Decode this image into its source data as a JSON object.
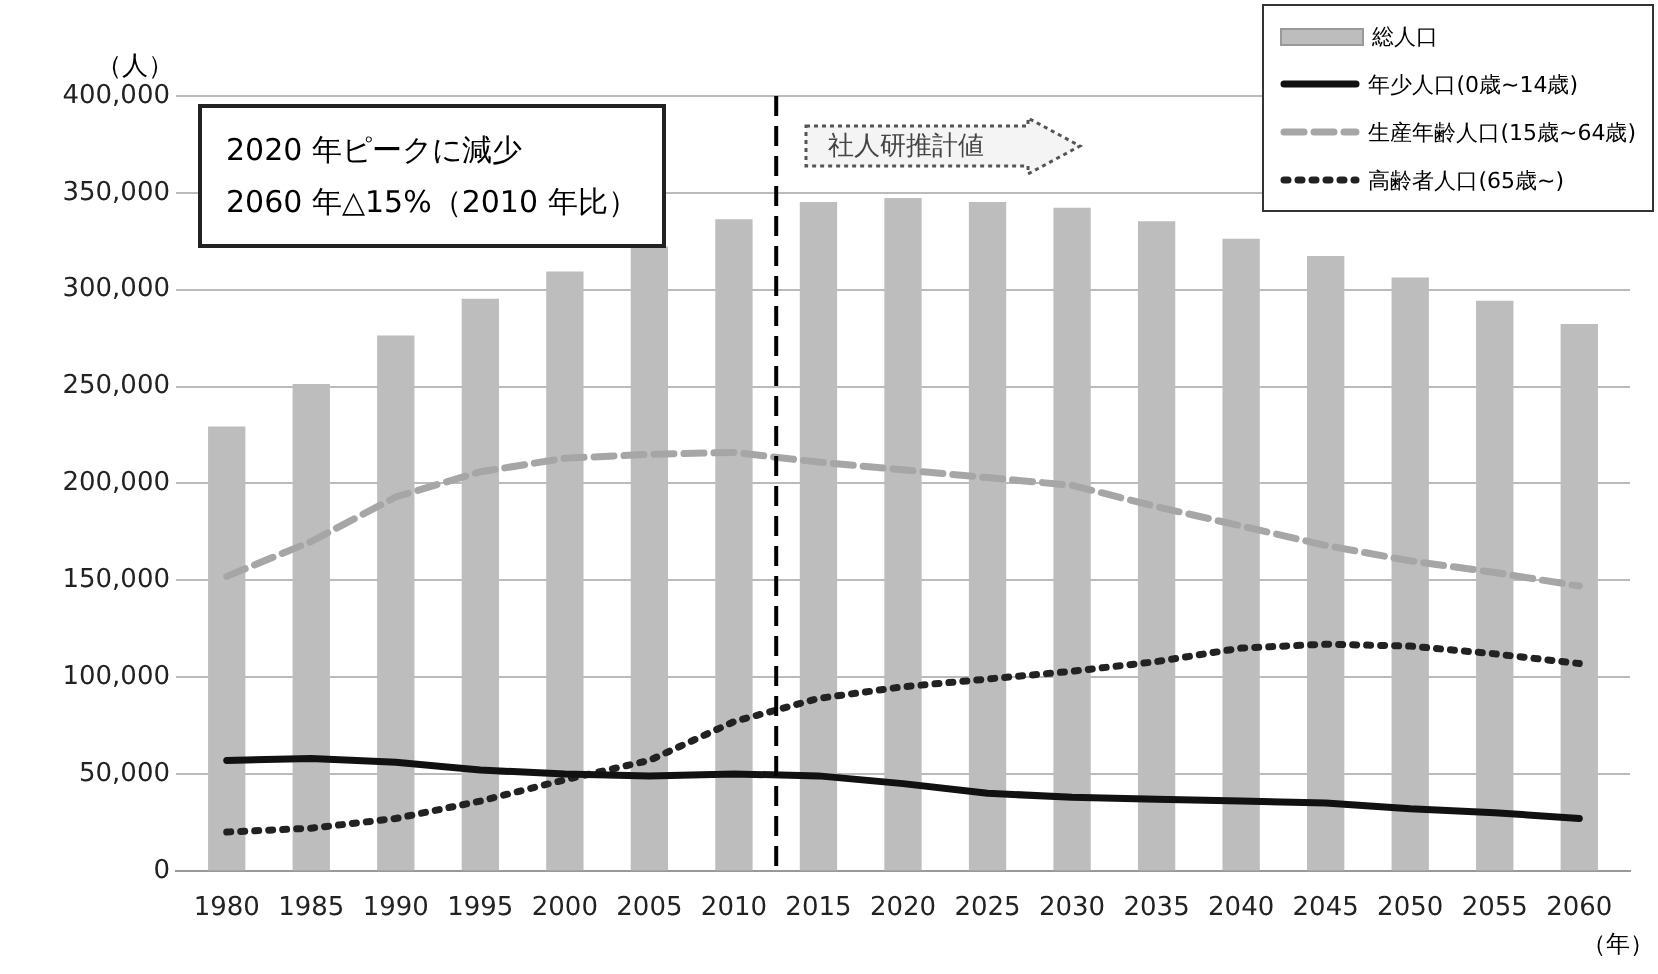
{
  "chart_data": {
    "type": "bar",
    "ylabel": "（人）",
    "xlabel": "（年）",
    "x": [
      1980,
      1985,
      1990,
      1995,
      2000,
      2005,
      2010,
      2015,
      2020,
      2025,
      2030,
      2035,
      2040,
      2045,
      2050,
      2055,
      2060
    ],
    "xlim": [
      1977,
      2063
    ],
    "xticks": [
      1980,
      1985,
      1990,
      1995,
      2000,
      2005,
      2010,
      2015,
      2020,
      2025,
      2030,
      2035,
      2040,
      2045,
      2050,
      2055,
      2060
    ],
    "ylim": [
      0,
      400000
    ],
    "yticks": [
      {
        "value": 0,
        "label": "0"
      },
      {
        "value": 50000,
        "label": "50,000"
      },
      {
        "value": 100000,
        "label": "100,000"
      },
      {
        "value": 150000,
        "label": "150,000"
      },
      {
        "value": 200000,
        "label": "200,000"
      },
      {
        "value": 250000,
        "label": "250,000"
      },
      {
        "value": 300000,
        "label": "300,000"
      },
      {
        "value": 350000,
        "label": "350,000"
      },
      {
        "value": 400000,
        "label": "400,000"
      }
    ],
    "grid": "y",
    "legend": "top right",
    "series": [
      {
        "name": "総人口",
        "color": "#bdbdbd",
        "values": [
          229000,
          251000,
          276000,
          295000,
          309000,
          322000,
          336000,
          345000,
          347000,
          345000,
          342000,
          335000,
          326000,
          317000,
          306000,
          294000,
          282000
        ]
      },
      {
        "name": "年少人口(0歳~14歳)",
        "type": "line",
        "line_style": "solid",
        "color": "#111111",
        "values": [
          57000,
          58000,
          56000,
          52000,
          50000,
          49000,
          50000,
          49000,
          45000,
          40000,
          38000,
          37000,
          36000,
          35000,
          32000,
          30000,
          27000
        ]
      },
      {
        "name": "生産年齢人口(15歳~64歳)",
        "type": "line",
        "line_style": "dashed",
        "color": "#a6a6a6",
        "values": [
          152000,
          170000,
          193000,
          206000,
          213000,
          215000,
          216000,
          211000,
          207000,
          203000,
          199000,
          188000,
          178000,
          168000,
          160000,
          154000,
          147000
        ]
      },
      {
        "name": "高齢者人口(65歳~)",
        "type": "line",
        "line_style": "dotted",
        "color": "#222222",
        "values": [
          20000,
          22000,
          27000,
          36000,
          47000,
          57000,
          77000,
          89000,
          95000,
          99000,
          103000,
          108000,
          115000,
          117000,
          116000,
          112000,
          107000
        ]
      }
    ],
    "ref_lines": [
      {
        "axis": "x",
        "value": 2012.5,
        "color": "#000000",
        "line_style": "dashed"
      }
    ],
    "annotations": [
      "2020 年ピークに減少",
      "2060 年△15%（2010 年比）",
      "社人研推計値"
    ]
  }
}
